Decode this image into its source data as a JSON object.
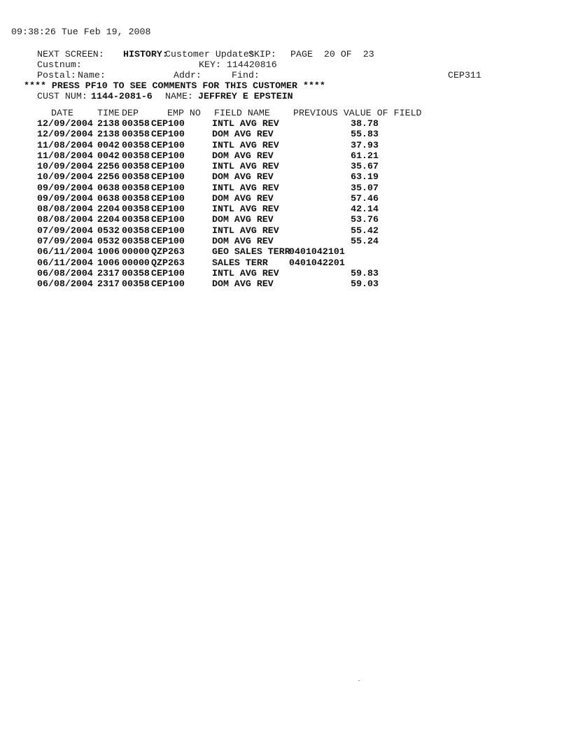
{
  "timestamp": "09:38:26 Tue Feb 19, 2008",
  "header": {
    "next_screen": "NEXT SCREEN:",
    "history_label": "HISTORY:",
    "history_value": "Customer Updates",
    "skip": "SKIP:",
    "page": "PAGE  20 OF  23",
    "custnum": "Custnum:",
    "key": "KEY: 114420816",
    "postal": "Postal:",
    "name": "Name:",
    "addr": "Addr:",
    "find": "Find:",
    "screen_id": "CEP311",
    "notice": "**** PRESS PF10 TO SEE COMMENTS FOR THIS CUSTOMER ****",
    "cust_num_label": "CUST NUM:",
    "cust_num": "1144-2081-6",
    "name_label": "NAME:",
    "cust_name": "JEFFREY E EPSTEIN"
  },
  "table": {
    "columns": [
      "DATE",
      "TIME",
      "DEP",
      "EMP NO",
      "FIELD NAME",
      "PREVIOUS VALUE OF FIELD"
    ],
    "rows": [
      [
        "12/09/2004",
        "2138",
        "00358",
        "CEP100",
        "INTL AVG REV",
        "38.78"
      ],
      [
        "12/09/2004",
        "2138",
        "00358",
        "CEP100",
        "DOM AVG REV",
        "55.83"
      ],
      [
        "11/08/2004",
        "0042",
        "00358",
        "CEP100",
        "INTL AVG REV",
        "37.93"
      ],
      [
        "11/08/2004",
        "0042",
        "00358",
        "CEP100",
        "DOM AVG REV",
        "61.21"
      ],
      [
        "10/09/2004",
        "2256",
        "00358",
        "CEP100",
        "INTL AVG REV",
        "35.67"
      ],
      [
        "10/09/2004",
        "2256",
        "00358",
        "CEP100",
        "DOM AVG REV",
        "63.19"
      ],
      [
        "09/09/2004",
        "0638",
        "00358",
        "CEP100",
        "INTL AVG REV",
        "35.07"
      ],
      [
        "09/09/2004",
        "0638",
        "00358",
        "CEP100",
        "DOM AVG REV",
        "57.46"
      ],
      [
        "08/08/2004",
        "2204",
        "00358",
        "CEP100",
        "INTL AVG REV",
        "42.14"
      ],
      [
        "08/08/2004",
        "2204",
        "00358",
        "CEP100",
        "DOM AVG REV",
        "53.76"
      ],
      [
        "07/09/2004",
        "0532",
        "00358",
        "CEP100",
        "INTL AVG REV",
        "55.42"
      ],
      [
        "07/09/2004",
        "0532",
        "00358",
        "CEP100",
        "DOM AVG REV",
        "55.24"
      ],
      [
        "06/11/2004",
        "1006",
        "00000",
        "QZP263",
        "GEO SALES TERR",
        "0401042101"
      ],
      [
        "06/11/2004",
        "1006",
        "00000",
        "QZP263",
        "SALES TERR",
        "0401042201"
      ],
      [
        "06/08/2004",
        "2317",
        "00358",
        "CEP100",
        "INTL AVG REV",
        "59.83"
      ],
      [
        "06/08/2004",
        "2317",
        "00358",
        "CEP100",
        "DOM AVG REV",
        "59.03"
      ]
    ]
  }
}
